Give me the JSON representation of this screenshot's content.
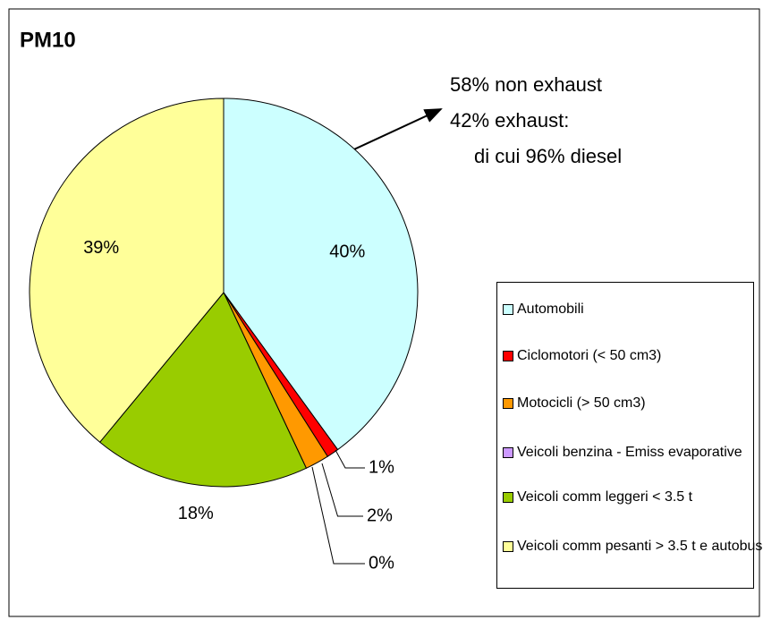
{
  "chart_data": {
    "type": "pie",
    "title": "PM10",
    "categories": [
      "Automobili",
      "Ciclomotori (< 50 cm3)",
      "Motocicli (> 50 cm3)",
      "Veicoli benzina - Emiss evaporative",
      "Veicoli comm leggeri < 3.5 t",
      "Veicoli comm pesanti > 3.5 t e autobus"
    ],
    "values": [
      40,
      1,
      2,
      0,
      18,
      39
    ],
    "value_labels": [
      "40%",
      "1%",
      "2%",
      "0%",
      "18%",
      "39%"
    ],
    "colors": [
      "#ccffff",
      "#ff0000",
      "#ff9900",
      "#cc99ff",
      "#99cc00",
      "#ffff99"
    ],
    "annotations": [
      "58% non exhaust",
      "42% exhaust:",
      "di cui 96% diesel"
    ]
  }
}
